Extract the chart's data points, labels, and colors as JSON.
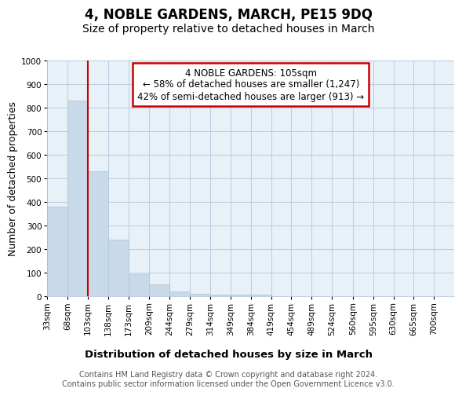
{
  "title": "4, NOBLE GARDENS, MARCH, PE15 9DQ",
  "subtitle": "Size of property relative to detached houses in March",
  "xlabel": "Distribution of detached houses by size in March",
  "ylabel": "Number of detached properties",
  "bar_color": "#c8daea",
  "bar_edge_color": "#b0c8dc",
  "vline_color": "#cc0000",
  "vline_x": 103,
  "annotation_text": "4 NOBLE GARDENS: 105sqm\n← 58% of detached houses are smaller (1,247)\n42% of semi-detached houses are larger (913) →",
  "annotation_box_color": "#ffffff",
  "annotation_box_edge": "#cc0000",
  "footer": "Contains HM Land Registry data © Crown copyright and database right 2024.\nContains public sector information licensed under the Open Government Licence v3.0.",
  "bin_edges": [
    33,
    68,
    103,
    138,
    173,
    209,
    244,
    279,
    314,
    349,
    384,
    419,
    454,
    489,
    524,
    560,
    595,
    630,
    665,
    700,
    735
  ],
  "bar_heights": [
    383,
    830,
    530,
    240,
    95,
    52,
    20,
    13,
    8,
    8,
    8,
    0,
    0,
    0,
    0,
    0,
    0,
    0,
    0,
    0
  ],
  "ylim": [
    0,
    1000
  ],
  "yticks": [
    0,
    100,
    200,
    300,
    400,
    500,
    600,
    700,
    800,
    900,
    1000
  ],
  "background_color": "#ffffff",
  "plot_bg_color": "#e8f0f8",
  "title_fontsize": 12,
  "subtitle_fontsize": 10,
  "axis_label_fontsize": 9,
  "tick_fontsize": 7.5,
  "footer_fontsize": 7,
  "annotation_fontsize": 8.5
}
